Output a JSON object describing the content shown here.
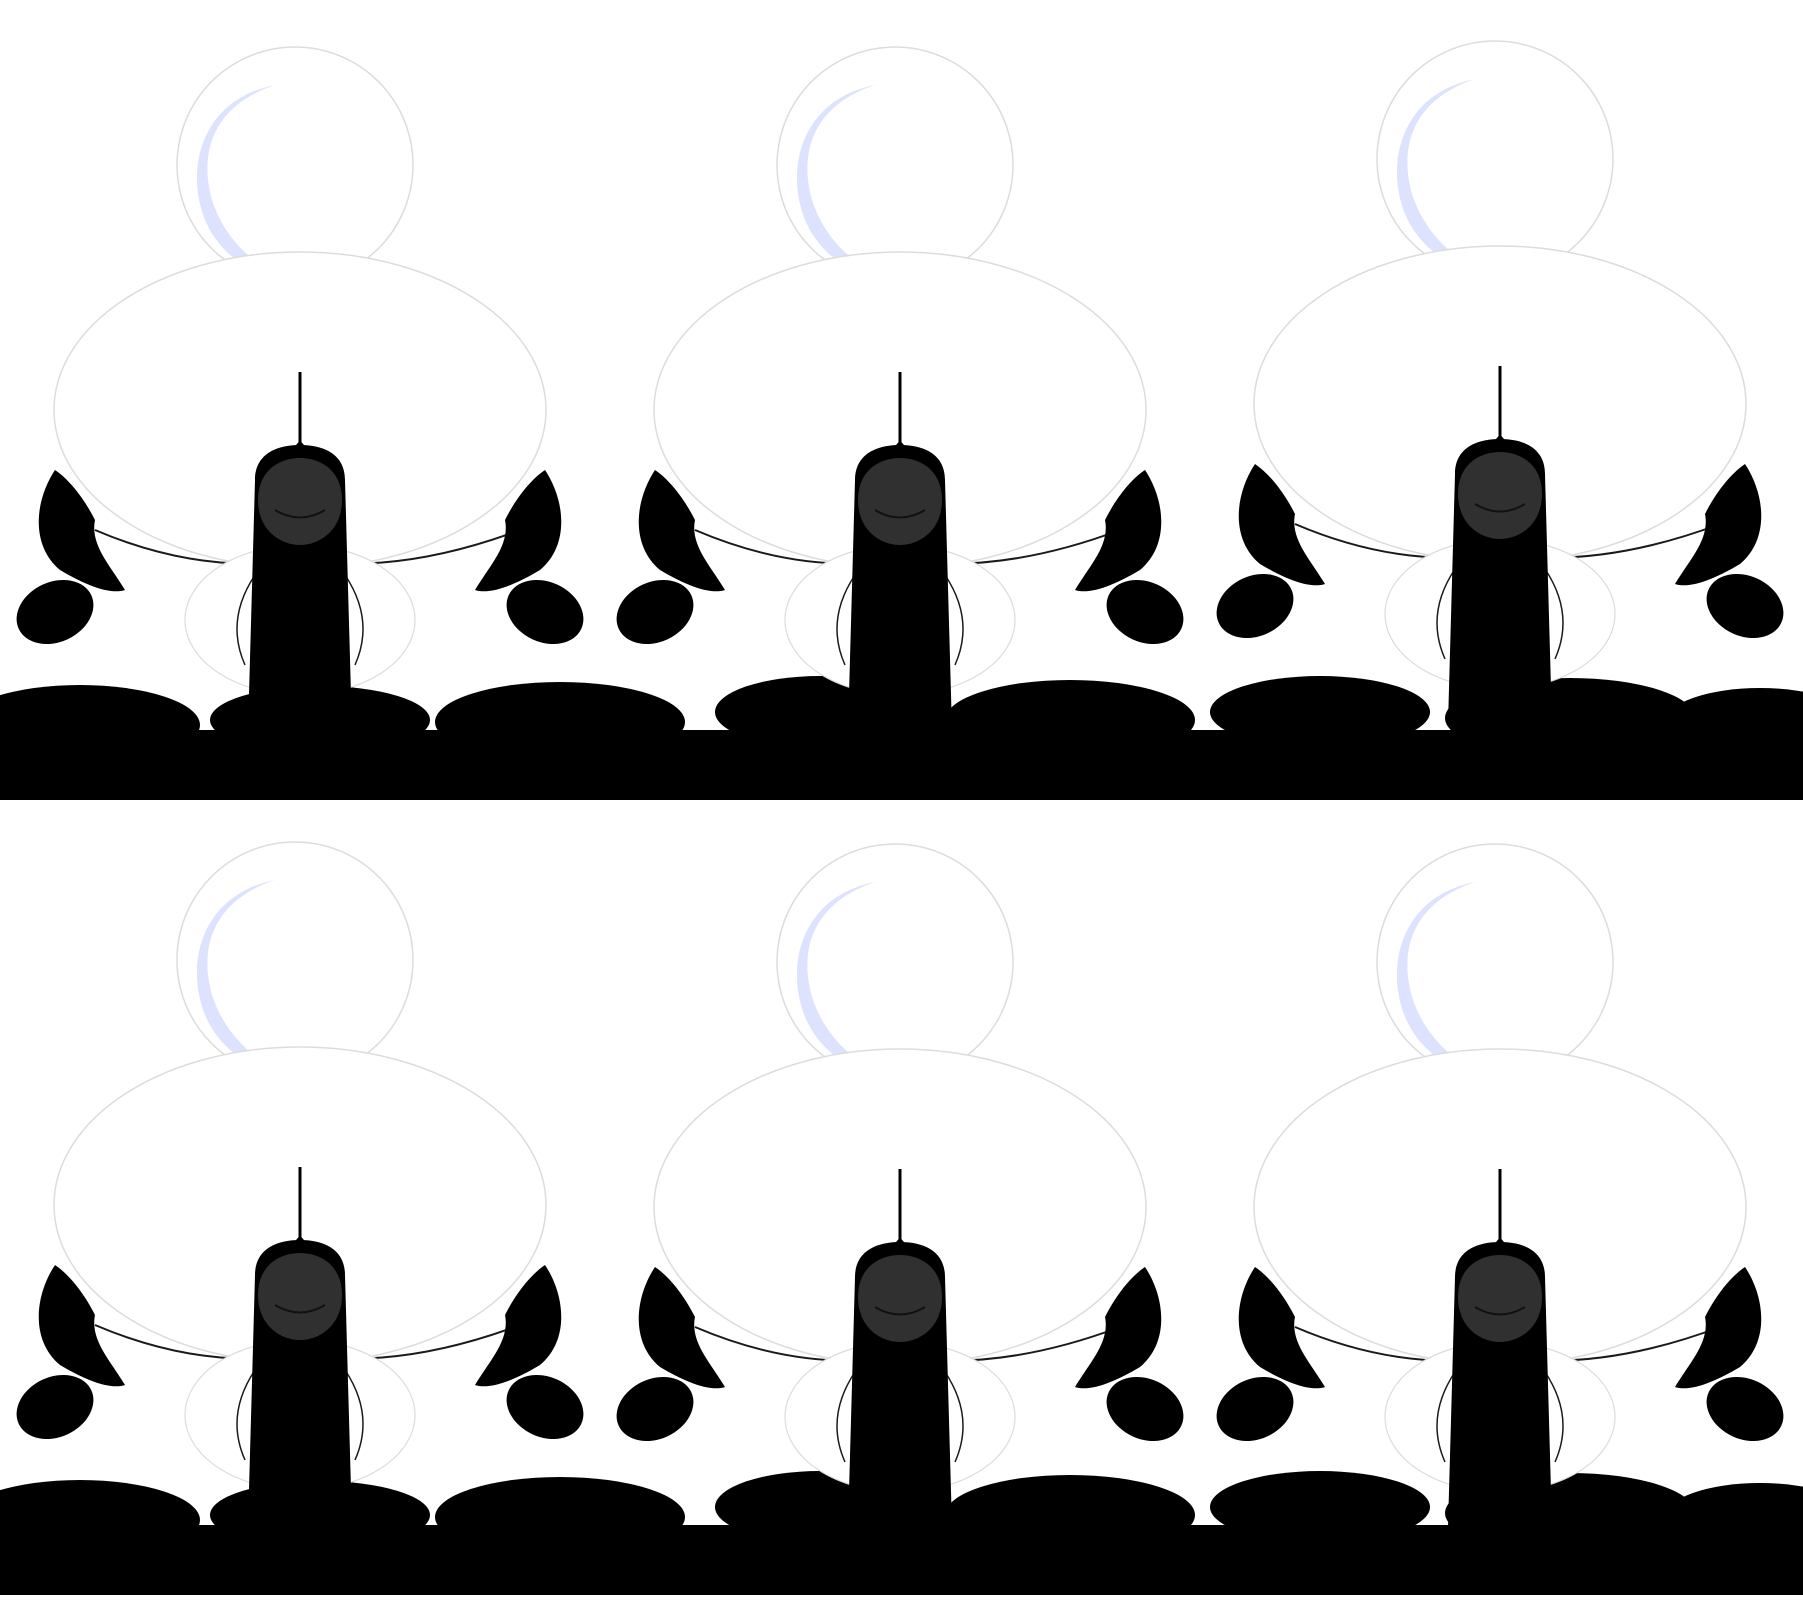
{
  "sheet": {
    "kind": "animation-frame-sheet",
    "rows": 2,
    "columns": 3,
    "frame_count": 6,
    "background_color": "#ffffff",
    "colors": {
      "ink": "#000000",
      "moon_tint": "#dde3ff",
      "hood_shadow": "#303030",
      "outline": "#dcdcdc",
      "line": "#1a1a1a"
    }
  },
  "frames": [
    {
      "index": 1,
      "subject": "figure-seen-from-behind"
    },
    {
      "index": 2,
      "subject": "figure-seen-from-behind"
    },
    {
      "index": 3,
      "subject": "figure-seen-from-behind"
    },
    {
      "index": 4,
      "subject": "figure-seen-from-behind"
    },
    {
      "index": 5,
      "subject": "figure-seen-from-behind"
    },
    {
      "index": 6,
      "subject": "figure-seen-from-behind"
    }
  ]
}
